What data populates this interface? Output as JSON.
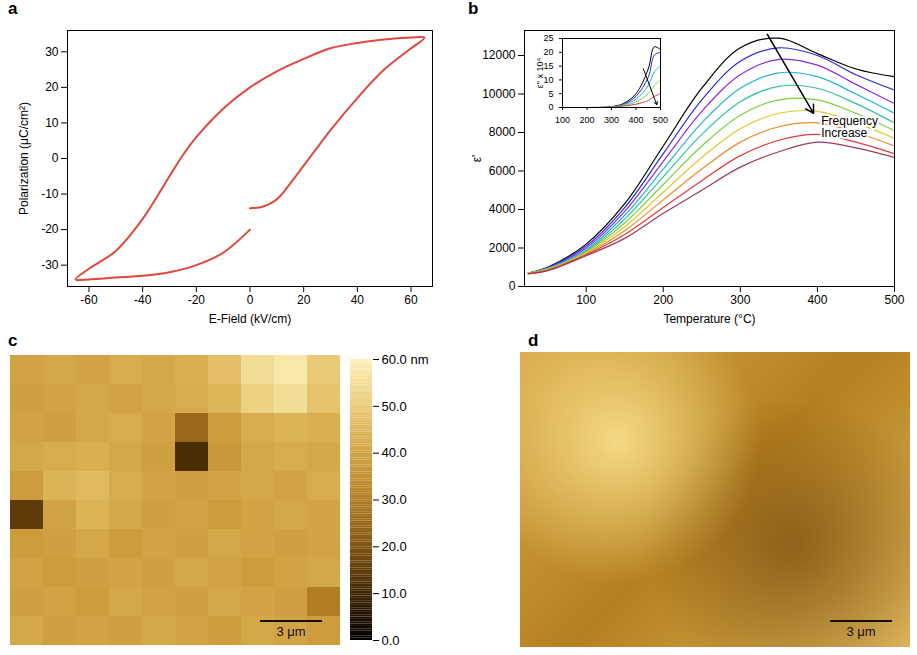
{
  "chart_data": [
    {
      "panel": "a",
      "type": "line",
      "x_label": "E-Field (kV/cm)",
      "y_label": "Polarization (μC/cm²)",
      "color": "#e0483c",
      "x": [
        0,
        5,
        10,
        15,
        20,
        25,
        30,
        40,
        50,
        60,
        65,
        60,
        50,
        40,
        30,
        20,
        10,
        0,
        -10,
        -20,
        -25,
        -30,
        -40,
        -50,
        -60,
        -65,
        -60,
        -50,
        -40,
        -30,
        -20,
        -10,
        0
      ],
      "values": [
        -14,
        -13.5,
        -11.5,
        -7,
        -2,
        3,
        8,
        17,
        25,
        31,
        34,
        34,
        33.5,
        32.5,
        31,
        28,
        24.5,
        20,
        14,
        6,
        1,
        -5,
        -17,
        -26,
        -31,
        -34,
        -34,
        -33.5,
        -33,
        -32,
        -30,
        -26.5,
        -20
      ],
      "xlim": [
        -68,
        68
      ],
      "xticks": [
        -60,
        -40,
        -20,
        0,
        20,
        40,
        60
      ],
      "ylim": [
        -36,
        36
      ],
      "yticks": [
        -30,
        -20,
        -10,
        0,
        10,
        20,
        30
      ]
    },
    {
      "panel": "b",
      "type": "line",
      "x_label": "Temperature (°C)",
      "y_label": "ε'",
      "x": [
        25,
        50,
        100,
        150,
        200,
        250,
        300,
        350,
        400,
        450,
        500
      ],
      "series": [
        {
          "color": "#000000",
          "values": [
            700,
            1000,
            2200,
            4300,
            7300,
            10300,
            12400,
            12900,
            12100,
            11300,
            10900
          ]
        },
        {
          "color": "#2b2bd9",
          "values": [
            700,
            980,
            2100,
            4100,
            6900,
            9700,
            11700,
            12400,
            12000,
            11000,
            10200
          ]
        },
        {
          "color": "#8a2be2",
          "values": [
            700,
            960,
            2000,
            3900,
            6500,
            9100,
            11000,
            11800,
            11500,
            10500,
            9500
          ]
        },
        {
          "color": "#1fb5d6",
          "values": [
            700,
            940,
            1900,
            3700,
            6100,
            8500,
            10300,
            11100,
            10900,
            10000,
            9000
          ]
        },
        {
          "color": "#2ec4a0",
          "values": [
            700,
            920,
            1850,
            3500,
            5700,
            7900,
            9600,
            10400,
            10300,
            9500,
            8500
          ]
        },
        {
          "color": "#7fcf3a",
          "values": [
            700,
            900,
            1800,
            3300,
            5300,
            7300,
            8900,
            9700,
            9700,
            9000,
            8100
          ]
        },
        {
          "color": "#e0c82a",
          "values": [
            690,
            880,
            1750,
            3100,
            4900,
            6700,
            8200,
            9000,
            9100,
            8500,
            7700
          ]
        },
        {
          "color": "#f08a2a",
          "values": [
            680,
            860,
            1700,
            2900,
            4500,
            6100,
            7500,
            8300,
            8500,
            8000,
            7300
          ]
        },
        {
          "color": "#e03a3a",
          "values": [
            670,
            840,
            1650,
            2700,
            4100,
            5500,
            6800,
            7600,
            7900,
            7500,
            6900
          ]
        },
        {
          "color": "#9c3a5a",
          "values": [
            660,
            820,
            1600,
            2500,
            3800,
            5000,
            6200,
            7000,
            7500,
            7200,
            6700
          ]
        }
      ],
      "xlim": [
        20,
        500
      ],
      "xticks": [
        100,
        200,
        300,
        400,
        500
      ],
      "ylim": [
        0,
        13300
      ],
      "yticks": [
        0,
        2000,
        4000,
        6000,
        8000,
        10000,
        12000
      ],
      "annotations": [
        {
          "text": "Frequency Increase",
          "x": 405,
          "y": 8300,
          "arrow": {
            "x1": 335,
            "y1": 13100,
            "x2": 395,
            "y2": 9000
          }
        }
      ],
      "inset": {
        "type": "line",
        "y_label": "ε'' x 10⁴",
        "x": [
          100,
          200,
          300,
          350,
          400,
          450,
          475,
          500
        ],
        "series": [
          {
            "color": "#000000",
            "values": [
              0,
              0,
              0.3,
              1.5,
              5,
              14,
              22,
              21
            ]
          },
          {
            "color": "#2b2bd9",
            "values": [
              0,
              0,
              0.2,
              1.2,
              4,
              11,
              19,
              20
            ]
          },
          {
            "color": "#1fb5d6",
            "values": [
              0,
              0,
              0.2,
              1,
              3,
              8,
              13,
              15
            ]
          },
          {
            "color": "#7fcf3a",
            "values": [
              0,
              0,
              0.1,
              0.7,
              2,
              5,
              8,
              10
            ]
          },
          {
            "color": "#e03a3a",
            "values": [
              0,
              0,
              0.1,
              0.5,
              1.2,
              2.5,
              4,
              5
            ]
          }
        ],
        "xlim": [
          100,
          500
        ],
        "xticks": [
          100,
          200,
          300,
          400,
          500
        ],
        "ylim": [
          0,
          25
        ],
        "yticks": [
          0,
          5,
          10,
          15,
          20,
          25
        ],
        "arrow": {
          "x1": 430,
          "y1": 14,
          "x2": 485,
          "y2": 1
        }
      }
    },
    {
      "panel": "c",
      "type": "heatmap",
      "tick_labels": false,
      "scale_bar": "3 μm",
      "values": [
        [
          40,
          41,
          40,
          42,
          41,
          43,
          47,
          55,
          58,
          50
        ],
        [
          39,
          40,
          41,
          40,
          41,
          42,
          45,
          52,
          55,
          48
        ],
        [
          40,
          39,
          41,
          42,
          40,
          25,
          38,
          42,
          44,
          43
        ],
        [
          41,
          42,
          43,
          41,
          39,
          12,
          37,
          41,
          42,
          41
        ],
        [
          38,
          44,
          46,
          42,
          40,
          39,
          40,
          41,
          40,
          42
        ],
        [
          15,
          40,
          44,
          41,
          39,
          40,
          38,
          40,
          41,
          40
        ],
        [
          38,
          39,
          41,
          38,
          40,
          39,
          41,
          40,
          39,
          40
        ],
        [
          40,
          38,
          39,
          40,
          39,
          41,
          40,
          38,
          40,
          41
        ],
        [
          39,
          40,
          38,
          41,
          40,
          39,
          41,
          40,
          39,
          30
        ],
        [
          41,
          39,
          40,
          39,
          41,
          40,
          38,
          41,
          40,
          38
        ]
      ],
      "colorbar": {
        "range": [
          0,
          60
        ],
        "ticks": [
          {
            "value": 0,
            "label": "0.0"
          },
          {
            "value": 10,
            "label": "10.0"
          },
          {
            "value": 20,
            "label": "20.0"
          },
          {
            "value": 30,
            "label": "30.0"
          },
          {
            "value": 40,
            "label": "40.0"
          },
          {
            "value": 50,
            "label": "50.0"
          },
          {
            "value": 60,
            "label": "60.0 nm"
          }
        ]
      }
    },
    {
      "panel": "d",
      "type": "image",
      "scale_bar": "3 μm"
    }
  ]
}
